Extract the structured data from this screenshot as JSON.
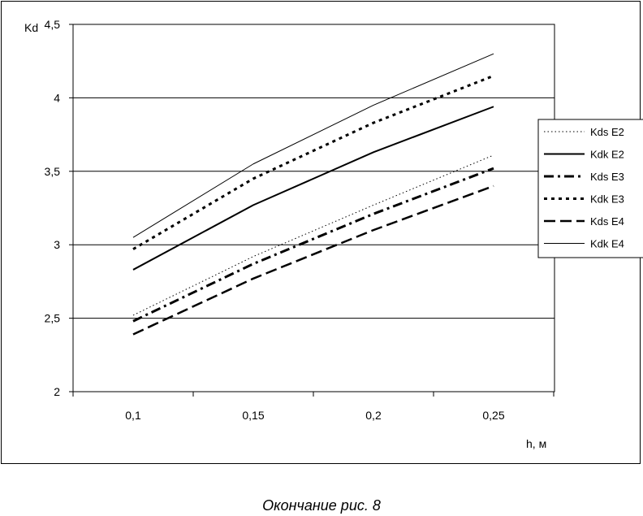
{
  "caption": "Окончание рис. 8",
  "chart_data": {
    "type": "line",
    "title": "",
    "xlabel": "h, м",
    "ylabel": "Kd",
    "categories": [
      "0,1",
      "0,15",
      "0,2",
      "0,25"
    ],
    "ylim": [
      2,
      4.5
    ],
    "yticks": [
      "2",
      "2,5",
      "3",
      "3,5",
      "4",
      "4,5"
    ],
    "ytick_values": [
      2,
      2.5,
      3,
      3.5,
      4,
      4.5
    ],
    "grid": "horizontal",
    "legend_position": "right",
    "series": [
      {
        "name": "Kds  E2",
        "values": [
          2.52,
          2.92,
          3.27,
          3.61
        ],
        "style": "dotted-thin"
      },
      {
        "name": "Kdk  E2",
        "values": [
          2.83,
          3.27,
          3.63,
          3.94
        ],
        "style": "solid-medium"
      },
      {
        "name": "Kds  E3",
        "values": [
          2.48,
          2.87,
          3.21,
          3.52
        ],
        "style": "dashdot-thick"
      },
      {
        "name": "Kdk   E3",
        "values": [
          2.97,
          3.45,
          3.83,
          4.15
        ],
        "style": "dotted-thick"
      },
      {
        "name": "Kds  E4",
        "values": [
          2.39,
          2.77,
          3.1,
          3.4
        ],
        "style": "dashed-thick"
      },
      {
        "name": "Kdk   E4",
        "values": [
          3.05,
          3.55,
          3.95,
          4.3
        ],
        "style": "solid-thin"
      }
    ]
  }
}
